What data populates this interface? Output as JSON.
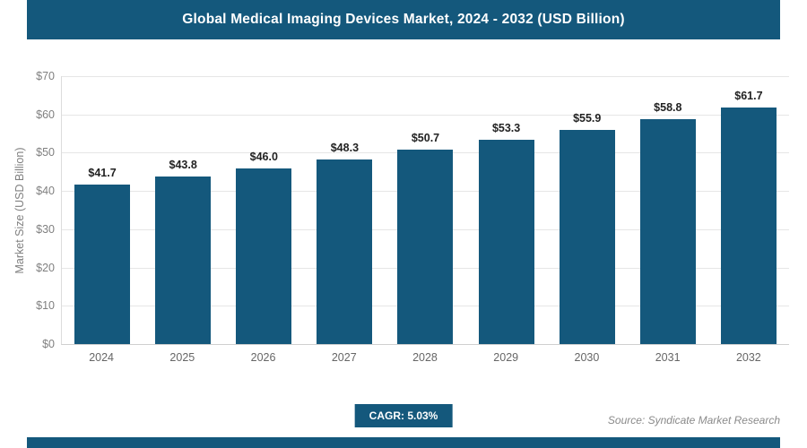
{
  "header": {
    "title": "Global Medical Imaging Devices Market, 2024 - 2032 (USD Billion)"
  },
  "colors": {
    "brand": "#14587c",
    "grid": "#e6e6e6",
    "axis_text": "#808080",
    "label_text": "#222222"
  },
  "chart_data": {
    "type": "bar",
    "title": "Global Medical Imaging Devices Market, 2024 - 2032 (USD Billion)",
    "categories": [
      "2024",
      "2025",
      "2026",
      "2027",
      "2028",
      "2029",
      "2030",
      "2031",
      "2032"
    ],
    "values": [
      41.7,
      43.8,
      46.0,
      48.3,
      50.7,
      53.3,
      55.9,
      58.8,
      61.7
    ],
    "value_labels": [
      "$41.7",
      "$43.8",
      "$46.0",
      "$48.3",
      "$50.7",
      "$53.3",
      "$55.9",
      "$58.8",
      "$61.7"
    ],
    "xlabel": "",
    "ylabel": "Market Size (USD Billion)",
    "ylim": [
      0,
      70
    ],
    "ytick_step": 10,
    "ytick_values": [
      0,
      10,
      20,
      30,
      40,
      50,
      60,
      70
    ],
    "ytick_labels": [
      "$0",
      "$10",
      "$20",
      "$30",
      "$40",
      "$50",
      "$60",
      "$70"
    ],
    "grid": true,
    "legend": false,
    "bar_color": "#14587c"
  },
  "footer": {
    "cagr_label": "CAGR: 5.03%",
    "source": "Source: Syndicate Market Research"
  }
}
